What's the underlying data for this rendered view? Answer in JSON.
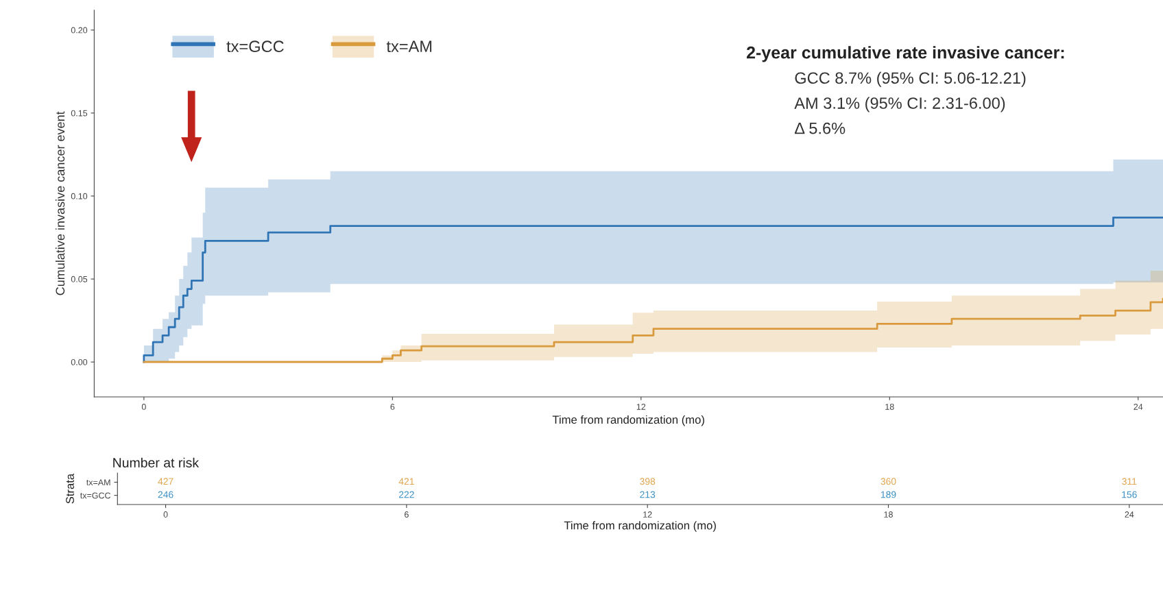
{
  "chart_data": [
    {
      "type": "step",
      "xlabel": "Time from randomization (mo)",
      "ylabel": "Cumulative invasive cancer event",
      "xlim": [
        -1.2,
        24.6
      ],
      "ylim": [
        -0.021,
        0.212
      ],
      "xticks": [
        0,
        6,
        12,
        18,
        24
      ],
      "yticks": [
        {
          "value": 0,
          "label": "0.00"
        },
        {
          "value": 0.05,
          "label": "0.05"
        },
        {
          "value": 0.1,
          "label": "0.10"
        },
        {
          "value": 0.15,
          "label": "0.15"
        },
        {
          "value": 0.2,
          "label": "0.20"
        }
      ],
      "grid": false,
      "legend": "top left",
      "series": [
        {
          "name": "tx=GCC",
          "color": "#2f74b5",
          "x": [
            0,
            0,
            0.22,
            0.45,
            0.6,
            0.75,
            0.85,
            0.95,
            1.05,
            1.15,
            1.42,
            1.48,
            3.0,
            4.5,
            23.4,
            24.6
          ],
          "values": [
            0,
            0.004,
            0.012,
            0.016,
            0.021,
            0.026,
            0.033,
            0.04,
            0.044,
            0.049,
            0.066,
            0.073,
            0.078,
            0.082,
            0.087,
            0.087
          ],
          "lower": [
            0,
            0,
            0,
            0,
            0.002,
            0.006,
            0.01,
            0.015,
            0.02,
            0.022,
            0.035,
            0.04,
            0.042,
            0.047,
            0.048,
            0.048
          ],
          "upper": [
            0.01,
            0.01,
            0.02,
            0.026,
            0.03,
            0.04,
            0.05,
            0.058,
            0.066,
            0.075,
            0.09,
            0.105,
            0.11,
            0.115,
            0.122,
            0.122
          ]
        },
        {
          "name": "tx=AM",
          "color": "#d99a3e",
          "x": [
            0,
            5.75,
            6.0,
            6.2,
            6.7,
            9.9,
            11.8,
            12.3,
            17.7,
            19.5,
            22.6,
            23.45,
            24.3,
            24.6
          ],
          "values": [
            0,
            0.002,
            0.004,
            0.007,
            0.0095,
            0.012,
            0.016,
            0.02,
            0.023,
            0.026,
            0.028,
            0.031,
            0.036,
            0.038
          ],
          "lower": [
            0,
            0,
            0,
            0,
            0.001,
            0.003,
            0.005,
            0.006,
            0.0087,
            0.01,
            0.0127,
            0.0166,
            0.02,
            0.021
          ],
          "upper": [
            0.001,
            0.004,
            0.007,
            0.01,
            0.017,
            0.0226,
            0.0297,
            0.031,
            0.0364,
            0.04,
            0.044,
            0.049,
            0.055,
            0.057
          ]
        }
      ],
      "annotations": [
        "2-year cumulative rate invasive cancer:",
        "GCC 8.7% (95% CI: 5.06-12.21)",
        "AM 3.1% (95% CI: 2.31-6.00)",
        "Δ 5.6%"
      ]
    },
    {
      "type": "heatmap",
      "title": "Number at risk",
      "xlabel": "Time from randomization (mo)",
      "ylabel": "Strata",
      "categories": [
        "0",
        "6",
        "12",
        "18",
        "24"
      ],
      "y_categories": [
        "tx=AM",
        "tx=GCC"
      ],
      "colors": [
        "#e0a54e",
        "#3a8fc4"
      ],
      "cells": [
        [
          427,
          421,
          398,
          360,
          311
        ],
        [
          246,
          222,
          213,
          189,
          156
        ]
      ],
      "data_labels": true
    }
  ]
}
